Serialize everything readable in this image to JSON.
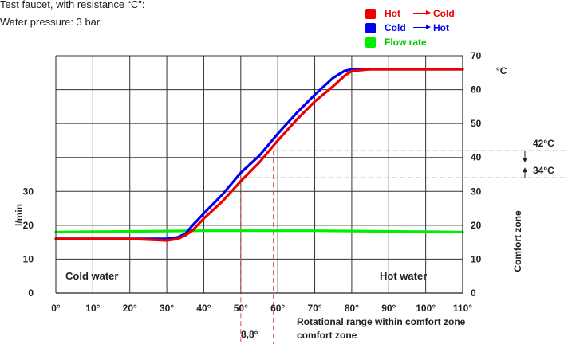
{
  "notes": {
    "line1": "Test faucet, with resistance “C”:",
    "line2": "Water pressure: 3 bar"
  },
  "legend": [
    {
      "name": "Hot",
      "arrow_label": "Cold",
      "color": "#ee0000"
    },
    {
      "name": "Cold",
      "arrow_label": "Hot",
      "color": "#0000ee"
    },
    {
      "name": "Flow rate",
      "arrow_label": "",
      "color": "#00ee00"
    }
  ],
  "chart_data": {
    "type": "line",
    "title": "",
    "xlabel": "Rotational range within comfort zone",
    "ylabel_left": "l/min",
    "ylabel_right": "°C",
    "right_axis_caption": "Comfort zone",
    "xlim": [
      0,
      110
    ],
    "ylim_left": [
      0,
      70
    ],
    "ylim_right": [
      0,
      70
    ],
    "x_ticks": [
      0,
      10,
      20,
      30,
      40,
      50,
      60,
      70,
      80,
      90,
      100,
      110
    ],
    "x_tick_labels": [
      "0°",
      "10°",
      "20°",
      "30°",
      "40°",
      "50°",
      "60°",
      "70°",
      "80°",
      "90°",
      "100°",
      "110°"
    ],
    "y_left_ticks": [
      0,
      10,
      20,
      30
    ],
    "y_left_tick_labels": [
      "0",
      "10",
      "20",
      "30"
    ],
    "y_right_ticks": [
      0,
      10,
      20,
      30,
      40,
      50,
      60,
      70
    ],
    "y_right_tick_labels": [
      "0",
      "10",
      "20",
      "30",
      "40",
      "50",
      "60",
      "70"
    ],
    "grid": true,
    "series": [
      {
        "name": "Hot",
        "color": "#ee0000",
        "x": [
          0,
          10,
          20,
          30,
          33,
          35,
          37,
          40,
          45,
          50,
          55,
          60,
          65,
          70,
          75,
          78,
          80,
          85,
          90,
          100,
          110
        ],
        "y": [
          16,
          16,
          16,
          15.5,
          16,
          17,
          18.5,
          22,
          27,
          33,
          38.5,
          45,
          51,
          56.5,
          61,
          64,
          65.5,
          66,
          66,
          66,
          66
        ]
      },
      {
        "name": "Cold",
        "color": "#0000ee",
        "x": [
          0,
          10,
          20,
          30,
          33,
          35,
          37,
          40,
          45,
          50,
          55,
          60,
          65,
          70,
          75,
          78,
          80,
          85,
          90,
          100,
          110
        ],
        "y": [
          16,
          16,
          16,
          16,
          16.5,
          17.5,
          20,
          23.5,
          29,
          35.5,
          40.5,
          47,
          53,
          58.5,
          63.5,
          65.5,
          66,
          66,
          66,
          66,
          66
        ]
      },
      {
        "name": "Flow rate",
        "color": "#00ee00",
        "x": [
          0,
          10,
          20,
          30,
          40,
          50,
          60,
          70,
          80,
          90,
          100,
          110
        ],
        "y": [
          18,
          18.1,
          18.2,
          18.3,
          18.4,
          18.4,
          18.4,
          18.4,
          18.3,
          18.2,
          18.1,
          18
        ]
      }
    ],
    "annotations": {
      "area_left": "Cold water",
      "area_right": "Hot water",
      "temp_high": {
        "label": "42°C",
        "value": 42,
        "x": 58.8
      },
      "temp_low": {
        "label": "34°C",
        "value": 34,
        "x": 50
      },
      "angle_span": {
        "label": "8,8°",
        "x_from": 50,
        "x_to": 58.8
      },
      "range_caption_line2": "comfort zone"
    }
  }
}
